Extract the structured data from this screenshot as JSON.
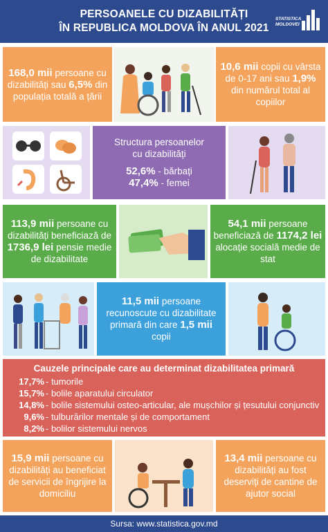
{
  "header": {
    "title_line1": "PERSOANELE CU DIZABILITĂȚI",
    "title_line2": "ÎN REPUBLICA MOLDOVA ÎN ANUL 2021",
    "logo_line1": "STATISTICA",
    "logo_line2": "MOLDOVEI"
  },
  "row1": {
    "left": {
      "bold1": "168,0 mii",
      "t1": " persoane cu dizabilități sau ",
      "bold2": "6,5%",
      "t2": " din populația totală a țării"
    },
    "right": {
      "bold1": "10,6 mii",
      "t1": " copii cu vârsta de 0-17 ani sau ",
      "bold2": "1,9%",
      "t2": " din numărul total al copiilor"
    }
  },
  "row2": {
    "title_line1": "Structura persoanelor",
    "title_line2": "cu dizabilități",
    "men_pct": "52,6%",
    "men_label": " - bărbați",
    "women_pct": "47,4%",
    "women_label": " - femei"
  },
  "row3": {
    "left": {
      "bold1": "113,9 mii",
      "t1": " persoane cu dizabilități beneficiază de ",
      "bold2": "1736,9 lei",
      "t2": " pensie medie de dizabilitate"
    },
    "right": {
      "bold1": "54,1 mii",
      "t1": " persoane beneficiază de ",
      "bold2": "1174,2 lei",
      "t2": " alocație socială medie de stat"
    }
  },
  "row4": {
    "bold1": "11,5 mii",
    "t1": " persoane recunoscute cu dizabilitate primară din care ",
    "bold2": "1,5 mii",
    "t2": " copii"
  },
  "causes": {
    "title": "Cauzele principale care au determinat dizabilitatea primară",
    "items": [
      {
        "pct": "17,7%",
        "label": "- tumorile"
      },
      {
        "pct": "15,7%",
        "label": "- bolile aparatului circulator"
      },
      {
        "pct": "14,8%",
        "label": "- bolile sistemului osteo-articular, ale mușchilor și țesutului conjunctiv"
      },
      {
        "pct": "9,6%",
        "label": "- tulburărilor mentale și de comportament"
      },
      {
        "pct": "8,2%",
        "label": "- bolilor sistemului nervos"
      }
    ]
  },
  "row5": {
    "left": {
      "bold1": "15,9 mii",
      "t1": " persoane cu dizabilități au beneficiat de servicii de îngrijire la domiciliu"
    },
    "right": {
      "bold1": "13,4 mii",
      "t1": " persoane cu dizabilități au fost deserviți de cantine de ajutor social"
    }
  },
  "footer": {
    "source": "Sursa: www.statistica.gov.md"
  }
}
